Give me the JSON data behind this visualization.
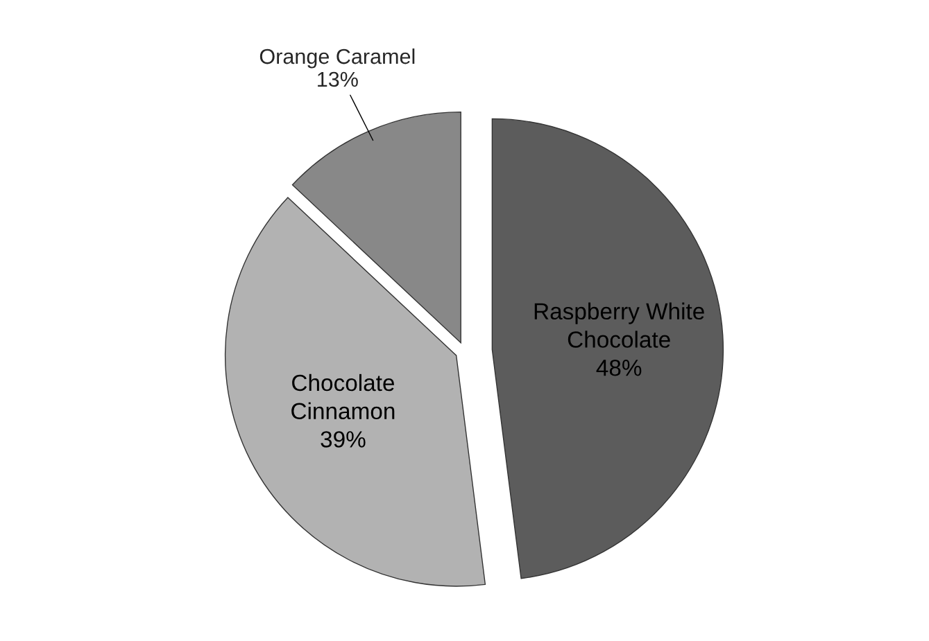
{
  "chart_data": {
    "type": "pie",
    "categories": [
      "Raspberry White\nChocolate",
      "Chocolate\nCinnamon",
      "Orange Caramel"
    ],
    "values": [
      48,
      39,
      13
    ],
    "value_labels": [
      "48%",
      "39%",
      "13%"
    ],
    "colors": [
      "#5c5c5c",
      "#b2b2b2",
      "#888888"
    ],
    "legend": false
  }
}
